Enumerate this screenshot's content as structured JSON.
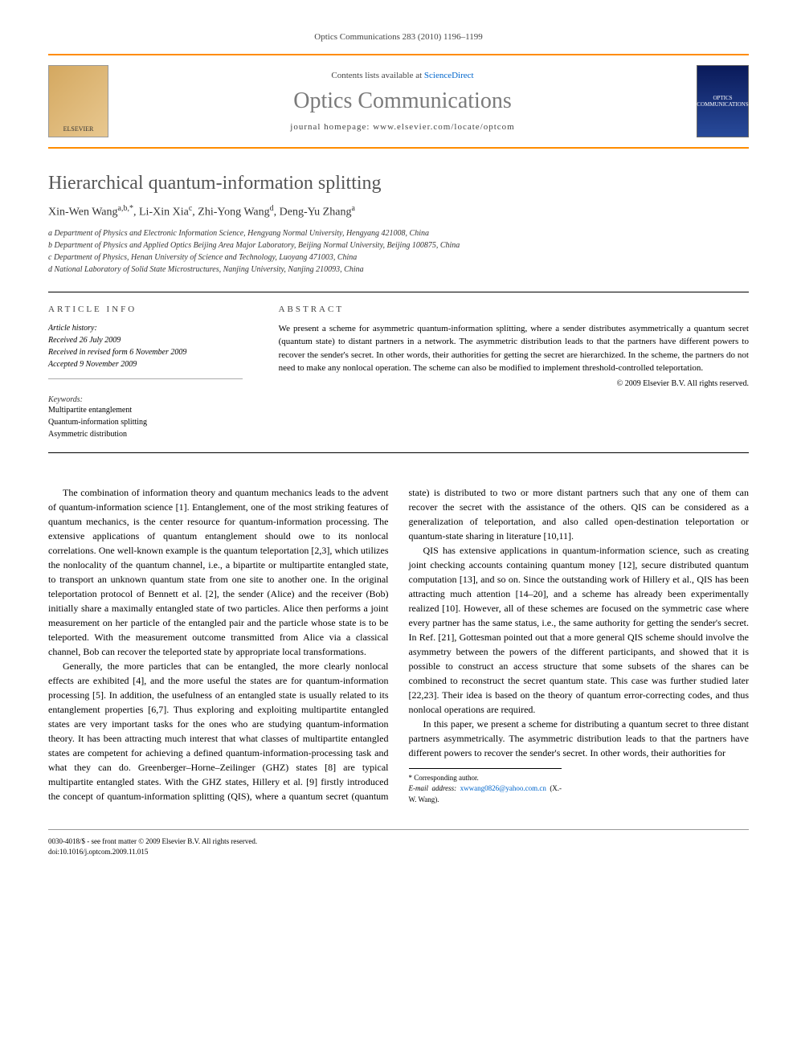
{
  "header": {
    "citation": "Optics Communications 283 (2010) 1196–1199",
    "contents_line_prefix": "Contents lists available at ",
    "contents_link": "ScienceDirect",
    "journal_name": "Optics Communications",
    "homepage_prefix": "journal homepage: ",
    "homepage_url": "www.elsevier.com/locate/optcom",
    "publisher_logo_text": "ELSEVIER",
    "cover_text": "OPTICS COMMUNICATIONS"
  },
  "article": {
    "title": "Hierarchical quantum-information splitting",
    "authors_html": "Xin-Wen Wang",
    "author1": "Xin-Wen Wang",
    "author1_aff": "a,b,*",
    "author2": "Li-Xin Xia",
    "author2_aff": "c",
    "author3": "Zhi-Yong Wang",
    "author3_aff": "d",
    "author4": "Deng-Yu Zhang",
    "author4_aff": "a",
    "affiliations": [
      "a Department of Physics and Electronic Information Science, Hengyang Normal University, Hengyang 421008, China",
      "b Department of Physics and Applied Optics Beijing Area Major Laboratory, Beijing Normal University, Beijing 100875, China",
      "c Department of Physics, Henan University of Science and Technology, Luoyang 471003, China",
      "d National Laboratory of Solid State Microstructures, Nanjing University, Nanjing 210093, China"
    ]
  },
  "info": {
    "heading": "ARTICLE INFO",
    "history_label": "Article history:",
    "received": "Received 26 July 2009",
    "revised": "Received in revised form 6 November 2009",
    "accepted": "Accepted 9 November 2009",
    "keywords_label": "Keywords:",
    "keywords": [
      "Multipartite entanglement",
      "Quantum-information splitting",
      "Asymmetric distribution"
    ]
  },
  "abstract": {
    "heading": "ABSTRACT",
    "text": "We present a scheme for asymmetric quantum-information splitting, where a sender distributes asymmetrically a quantum secret (quantum state) to distant partners in a network. The asymmetric distribution leads to that the partners have different powers to recover the sender's secret. In other words, their authorities for getting the secret are hierarchized. In the scheme, the partners do not need to make any nonlocal operation. The scheme can also be modified to implement threshold-controlled teleportation.",
    "copyright": "© 2009 Elsevier B.V. All rights reserved."
  },
  "body": {
    "p1": "The combination of information theory and quantum mechanics leads to the advent of quantum-information science [1]. Entanglement, one of the most striking features of quantum mechanics, is the center resource for quantum-information processing. The extensive applications of quantum entanglement should owe to its nonlocal correlations. One well-known example is the quantum teleportation [2,3], which utilizes the nonlocality of the quantum channel, i.e., a bipartite or multipartite entangled state, to transport an unknown quantum state from one site to another one. In the original teleportation protocol of Bennett et al. [2], the sender (Alice) and the receiver (Bob) initially share a maximally entangled state of two particles. Alice then performs a joint measurement on her particle of the entangled pair and the particle whose state is to be teleported. With the measurement outcome transmitted from Alice via a classical channel, Bob can recover the teleported state by appropriate local transformations.",
    "p2": "Generally, the more particles that can be entangled, the more clearly nonlocal effects are exhibited [4], and the more useful the states are for quantum-information processing [5]. In addition, the usefulness of an entangled state is usually related to its entanglement properties [6,7]. Thus exploring and exploiting multipartite entangled states are very important tasks for the ones who are studying quantum-information theory. It has been attracting much interest that what classes of multipartite entangled states are competent for achieving a defined quantum-information-processing task and what they can do. Greenberger–Horne–Zeilinger (GHZ) states [8] are typical multipartite entangled states. With the GHZ states, Hillery et al. [9] firstly introduced the concept of quantum-information splitting (QIS), where a quantum secret (quantum state) is distributed to two or more distant partners such that any one of them can recover the secret with the assistance of the others. QIS can be considered as a generalization of teleportation, and also called open-destination teleportation or quantum-state sharing in literature [10,11].",
    "p3": "QIS has extensive applications in quantum-information science, such as creating joint checking accounts containing quantum money [12], secure distributed quantum computation [13], and so on. Since the outstanding work of Hillery et al., QIS has been attracting much attention [14–20], and a scheme has already been experimentally realized [10]. However, all of these schemes are focused on the symmetric case where every partner has the same status, i.e., the same authority for getting the sender's secret. In Ref. [21], Gottesman pointed out that a more general QIS scheme should involve the asymmetry between the powers of the different participants, and showed that it is possible to construct an access structure that some subsets of the shares can be combined to reconstruct the secret quantum state. This case was further studied later [22,23]. Their idea is based on the theory of quantum error-correcting codes, and thus nonlocal operations are required.",
    "p4": "In this paper, we present a scheme for distributing a quantum secret to three distant partners asymmetrically. The asymmetric distribution leads to that the partners have different powers to recover the sender's secret. In other words, their authorities for"
  },
  "corresponding": {
    "label": "* Corresponding author.",
    "email_label": "E-mail address: ",
    "email": "xwwang0826@yahoo.com.cn",
    "email_suffix": " (X.-W. Wang)."
  },
  "footer": {
    "line1": "0030-4018/$ - see front matter © 2009 Elsevier B.V. All rights reserved.",
    "line2": "doi:10.1016/j.optcom.2009.11.015"
  },
  "colors": {
    "accent": "#ff8c00",
    "link": "#0066cc",
    "text": "#000000",
    "title_gray": "#555555",
    "journal_gray": "#7a7a7a"
  }
}
